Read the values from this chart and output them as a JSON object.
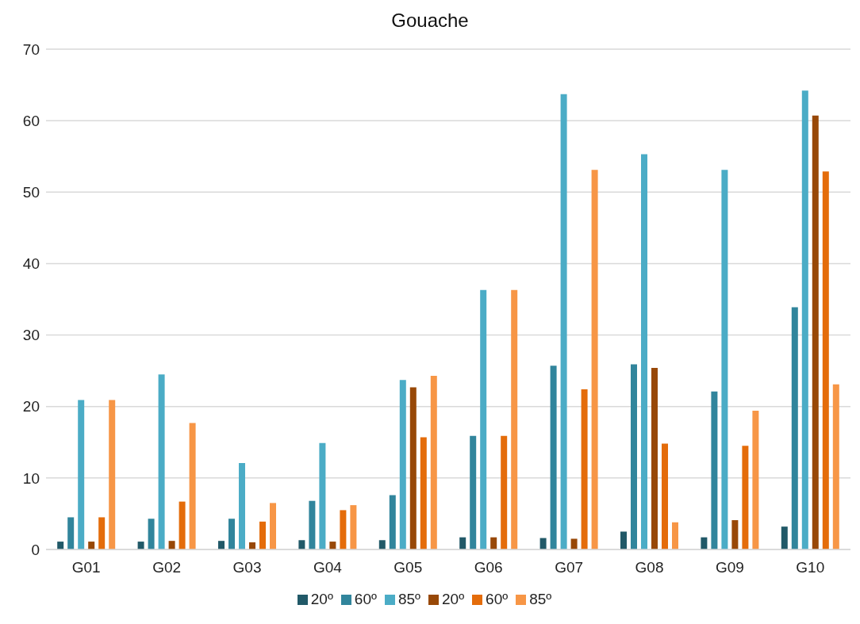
{
  "chart_data": {
    "type": "bar",
    "title": "Gouache",
    "categories": [
      "G01",
      "G02",
      "G03",
      "G04",
      "G05",
      "G06",
      "G07",
      "G08",
      "G09",
      "G10"
    ],
    "series": [
      {
        "name": "20º",
        "color": "#215968",
        "values": [
          1.1,
          1.1,
          1.2,
          1.3,
          1.3,
          1.7,
          1.6,
          2.5,
          1.7,
          3.2
        ]
      },
      {
        "name": "60º",
        "color": "#31859c",
        "values": [
          4.5,
          4.3,
          4.3,
          6.8,
          7.6,
          15.9,
          25.7,
          25.9,
          22.1,
          33.9
        ]
      },
      {
        "name": "85º",
        "color": "#4bacc6",
        "values": [
          20.9,
          24.5,
          12.1,
          14.9,
          23.7,
          36.3,
          63.7,
          55.3,
          53.1,
          64.2
        ]
      },
      {
        "name": "20º",
        "color": "#984807",
        "values": [
          1.1,
          1.2,
          1.0,
          1.1,
          22.7,
          1.7,
          1.5,
          25.4,
          4.1,
          60.7
        ]
      },
      {
        "name": "60º",
        "color": "#e46c0a",
        "values": [
          4.5,
          6.7,
          3.9,
          5.5,
          15.7,
          15.9,
          22.4,
          14.8,
          14.5,
          52.9
        ]
      },
      {
        "name": "85º",
        "color": "#f79646",
        "values": [
          20.9,
          17.7,
          6.5,
          6.2,
          24.3,
          36.3,
          53.1,
          3.8,
          19.4,
          23.1
        ]
      }
    ],
    "ylim": [
      0,
      70
    ],
    "yticks": [
      0,
      10,
      20,
      30,
      40,
      50,
      60,
      70
    ],
    "grid": "y",
    "legend": "bottom"
  }
}
